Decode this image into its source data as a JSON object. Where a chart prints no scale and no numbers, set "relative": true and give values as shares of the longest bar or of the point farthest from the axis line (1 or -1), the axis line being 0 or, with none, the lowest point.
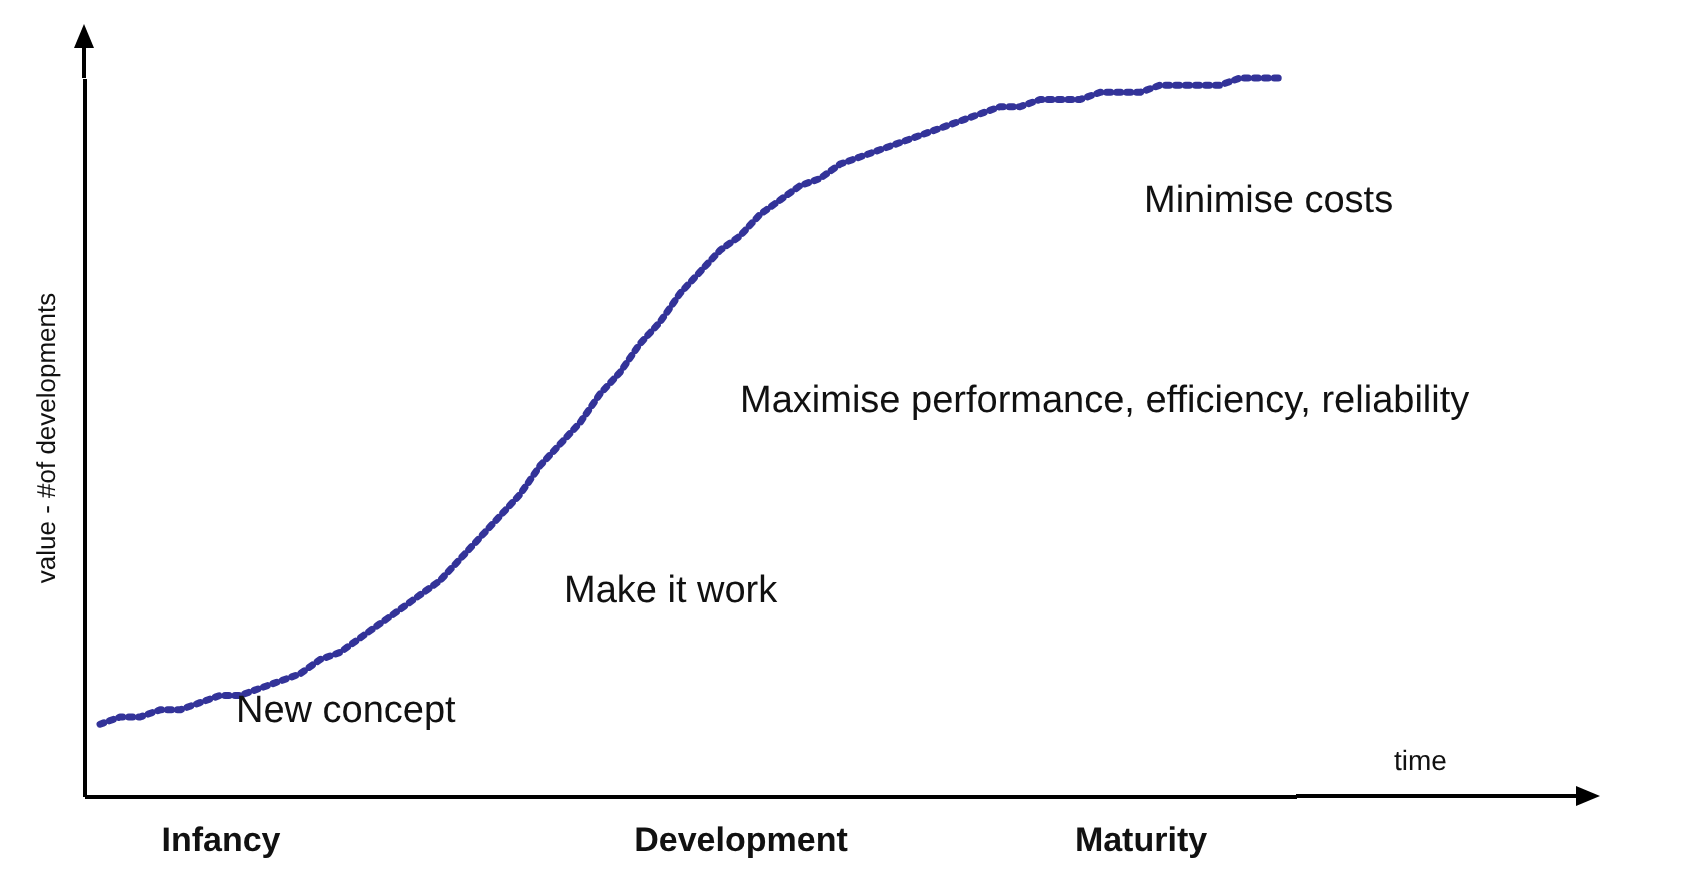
{
  "chart_data": {
    "type": "line",
    "relative": true,
    "xlabel": "time",
    "ylabel": "value - #of developments",
    "line_style": "dotted",
    "marker": "none",
    "categories": [
      null,
      null,
      null,
      null,
      null,
      null,
      "Infancy",
      null,
      null,
      null,
      null,
      null,
      null,
      null,
      null,
      null,
      null,
      null,
      null,
      null,
      null,
      null,
      null,
      null,
      null,
      null,
      null,
      null,
      null,
      null,
      null,
      null,
      "Development",
      null,
      null,
      null,
      null,
      null,
      null,
      null,
      null,
      null,
      null,
      null,
      null,
      null,
      null,
      null,
      null,
      null,
      null,
      null,
      "Maturity",
      null,
      null,
      null,
      null,
      null,
      null,
      null
    ],
    "series": [
      {
        "color": "#333399",
        "values": [
          0.1,
          0.11,
          0.11,
          0.12,
          0.12,
          0.13,
          0.14,
          0.14,
          0.15,
          0.16,
          0.17,
          0.19,
          0.2,
          0.22,
          0.24,
          0.26,
          0.28,
          0.3,
          0.33,
          0.36,
          0.39,
          0.42,
          0.46,
          0.49,
          0.52,
          0.56,
          0.59,
          0.63,
          0.66,
          0.7,
          0.73,
          0.76,
          0.78,
          0.81,
          0.83,
          0.85,
          0.86,
          0.88,
          0.89,
          0.9,
          0.91,
          0.92,
          0.93,
          0.94,
          0.95,
          0.96,
          0.96,
          0.97,
          0.97,
          0.97,
          0.98,
          0.98,
          0.98,
          0.99,
          0.99,
          0.99,
          0.99,
          1.0,
          1.0,
          1.0
        ]
      }
    ],
    "annotations": [
      "New concept",
      "Make it work",
      "Maximise performance, efficiency, reliability",
      "Minimise costs"
    ]
  }
}
